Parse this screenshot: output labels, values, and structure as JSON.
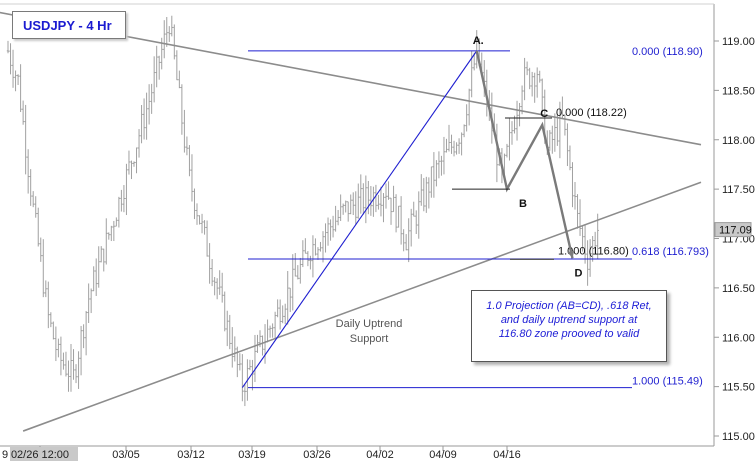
{
  "chart_data": {
    "type": "candlestick",
    "title": "USDJPY - 4 Hr",
    "y_axis": {
      "position": "right",
      "range": [
        115.0,
        119.3
      ],
      "ticks": [
        "119.00",
        "118.50",
        "118.00",
        "117.50",
        "117.00",
        "116.50",
        "116.00",
        "115.50",
        "115.00"
      ],
      "current_price_label": "117.09"
    },
    "x_axis": {
      "ticks": [
        "02/26 12:00",
        "03/05",
        "03/12",
        "03/19",
        "03/26",
        "04/02",
        "04/09",
        "04/16"
      ],
      "left_edge_label": "9"
    },
    "anchor_series": [
      {
        "t": 0,
        "v": 118.9
      },
      {
        "t": 4,
        "v": 118.6
      },
      {
        "t": 10,
        "v": 117.3
      },
      {
        "t": 16,
        "v": 116.2
      },
      {
        "t": 20,
        "v": 115.8
      },
      {
        "t": 26,
        "v": 115.6
      },
      {
        "t": 32,
        "v": 116.4
      },
      {
        "t": 42,
        "v": 117.2
      },
      {
        "t": 56,
        "v": 118.4
      },
      {
        "t": 64,
        "v": 119.2
      },
      {
        "t": 72,
        "v": 117.6
      },
      {
        "t": 84,
        "v": 116.4
      },
      {
        "t": 88,
        "v": 116.0
      },
      {
        "t": 93,
        "v": 115.5
      },
      {
        "t": 100,
        "v": 115.9
      },
      {
        "t": 110,
        "v": 116.4
      },
      {
        "t": 120,
        "v": 116.9
      },
      {
        "t": 134,
        "v": 117.3
      },
      {
        "t": 150,
        "v": 117.5
      },
      {
        "t": 158,
        "v": 117.0
      },
      {
        "t": 168,
        "v": 117.6
      },
      {
        "t": 180,
        "v": 118.1
      },
      {
        "t": 186,
        "v": 118.9
      },
      {
        "t": 196,
        "v": 117.6
      },
      {
        "t": 204,
        "v": 118.6
      },
      {
        "t": 210,
        "v": 118.7
      },
      {
        "t": 214,
        "v": 117.9
      },
      {
        "t": 220,
        "v": 118.2
      },
      {
        "t": 226,
        "v": 117.2
      },
      {
        "t": 230,
        "v": 116.8
      },
      {
        "t": 234,
        "v": 117.09
      }
    ],
    "trendlines": [
      {
        "name": "upper-trendline",
        "from": {
          "t": -12,
          "v": 119.33
        },
        "to": {
          "t": 275,
          "v": 117.95
        }
      },
      {
        "name": "daily-uptrend-support",
        "from": {
          "t": 6,
          "v": 115.05
        },
        "to": {
          "t": 275,
          "v": 117.57
        }
      },
      {
        "name": "fib-extension-line",
        "from": {
          "t": 93,
          "v": 115.49
        },
        "to": {
          "t": 186,
          "v": 118.9
        }
      }
    ],
    "levels": [
      {
        "label": "0.000 (118.90)",
        "value": 118.9
      },
      {
        "label": "0.000 (118.22)",
        "value": 118.22
      },
      {
        "label": "1.000 (116.80)",
        "value": 116.8
      },
      {
        "label": "0.618 (116.793)",
        "value": 116.793
      },
      {
        "label": "1.000 (115.49)",
        "value": 115.49
      }
    ],
    "abcd_pattern": [
      {
        "label": "A.",
        "t": 186,
        "v": 118.9
      },
      {
        "label": "B",
        "t": 198,
        "v": 117.5
      },
      {
        "label": "C",
        "t": 212,
        "v": 118.15
      },
      {
        "label": "D",
        "t": 224,
        "v": 116.8
      }
    ],
    "annotations": {
      "support_label": [
        "Daily Uptrend",
        "Support"
      ],
      "note": [
        "1.0 Projection (AB=CD), .618 Ret,",
        "and daily uptrend support at",
        "116.80 zone  prooved to valid"
      ]
    },
    "colors": {
      "bars": "#a0a0a0",
      "trendline": "#8c8c8c",
      "fib": "#1f1fd0",
      "pattern": "#7a7a7a",
      "current_price_box": "#c9c9c9"
    }
  }
}
